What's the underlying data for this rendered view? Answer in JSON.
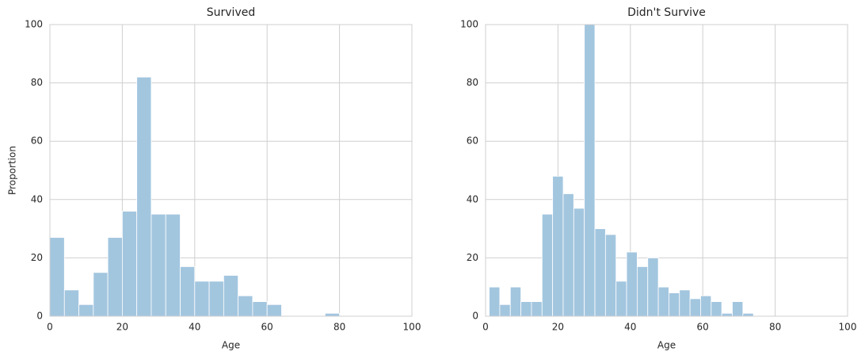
{
  "chart_data": [
    {
      "type": "histogram",
      "title": "Survived",
      "xlabel": "Age",
      "ylabel": "Proportion",
      "bins": [
        0,
        4,
        8,
        12,
        16,
        20,
        24,
        28,
        32,
        36,
        40,
        44,
        48,
        52,
        56,
        60,
        64,
        68,
        72,
        76,
        80
      ],
      "counts": [
        27,
        9,
        4,
        15,
        27,
        36,
        82,
        35,
        35,
        17,
        12,
        12,
        14,
        7,
        5,
        4,
        0,
        0,
        0,
        1
      ],
      "color": "#a3c6df",
      "xlim": [
        0,
        100
      ],
      "xticks": [
        0,
        20,
        40,
        60,
        80,
        100
      ],
      "ylim": [
        0,
        100
      ],
      "yticks": [
        0,
        20,
        40,
        60,
        80,
        100
      ],
      "grid": true
    },
    {
      "type": "histogram",
      "title": "Didn't Survive",
      "xlabel": "Age",
      "bins": [
        1,
        3.92,
        6.84,
        9.76,
        12.68,
        15.6,
        18.52,
        21.44,
        24.36,
        27.28,
        30.2,
        33.12,
        36.04,
        38.96,
        41.88,
        44.8,
        47.72,
        50.64,
        53.56,
        56.48,
        59.4,
        62.32,
        65.24,
        68.16,
        71.08,
        74
      ],
      "counts": [
        10,
        4,
        10,
        5,
        5,
        35,
        48,
        42,
        37,
        100,
        30,
        28,
        12,
        22,
        17,
        20,
        10,
        8,
        9,
        6,
        7,
        5,
        1,
        5,
        1
      ],
      "color": "#a3c6df",
      "xlim": [
        0,
        100
      ],
      "xticks": [
        0,
        20,
        40,
        60,
        80,
        100
      ],
      "ylim": [
        0,
        100
      ],
      "yticks": [
        0,
        20,
        40,
        60,
        80,
        100
      ],
      "grid": true
    }
  ]
}
